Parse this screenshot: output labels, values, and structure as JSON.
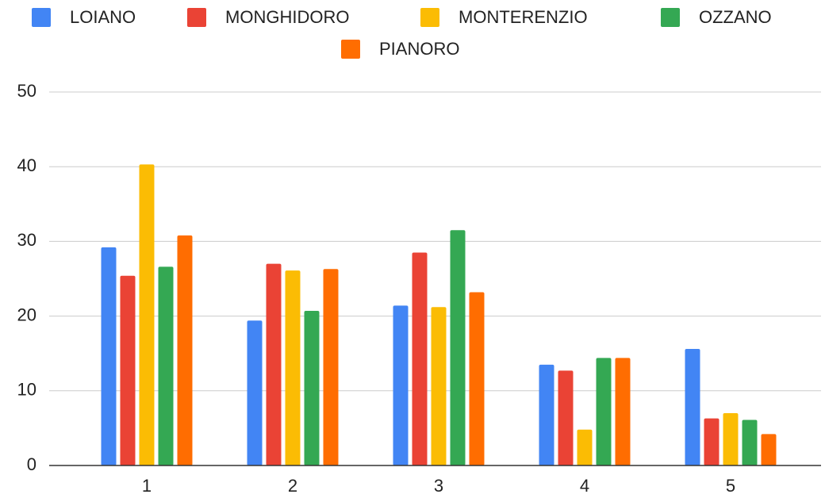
{
  "chart_data": {
    "type": "bar",
    "categories": [
      "1",
      "2",
      "3",
      "4",
      "5"
    ],
    "series": [
      {
        "name": "LOIANO",
        "color": "#4285f4",
        "values": [
          29.2,
          19.4,
          21.4,
          13.5,
          15.6
        ]
      },
      {
        "name": "MONGHIDORO",
        "color": "#ea4335",
        "values": [
          25.4,
          27.0,
          28.5,
          12.7,
          6.3
        ]
      },
      {
        "name": "MONTERENZIO",
        "color": "#fbbc04",
        "values": [
          40.3,
          26.1,
          21.2,
          4.8,
          7.0
        ]
      },
      {
        "name": "OZZANO",
        "color": "#34a853",
        "values": [
          26.6,
          20.7,
          31.5,
          14.4,
          6.1
        ]
      },
      {
        "name": "PIANORO",
        "color": "#ff6d01",
        "values": [
          30.8,
          26.3,
          23.2,
          14.4,
          4.2
        ]
      }
    ],
    "ylim": [
      0,
      50
    ],
    "yticks": [
      0,
      10,
      20,
      30,
      40,
      50
    ],
    "grid": true,
    "legend": "top"
  }
}
